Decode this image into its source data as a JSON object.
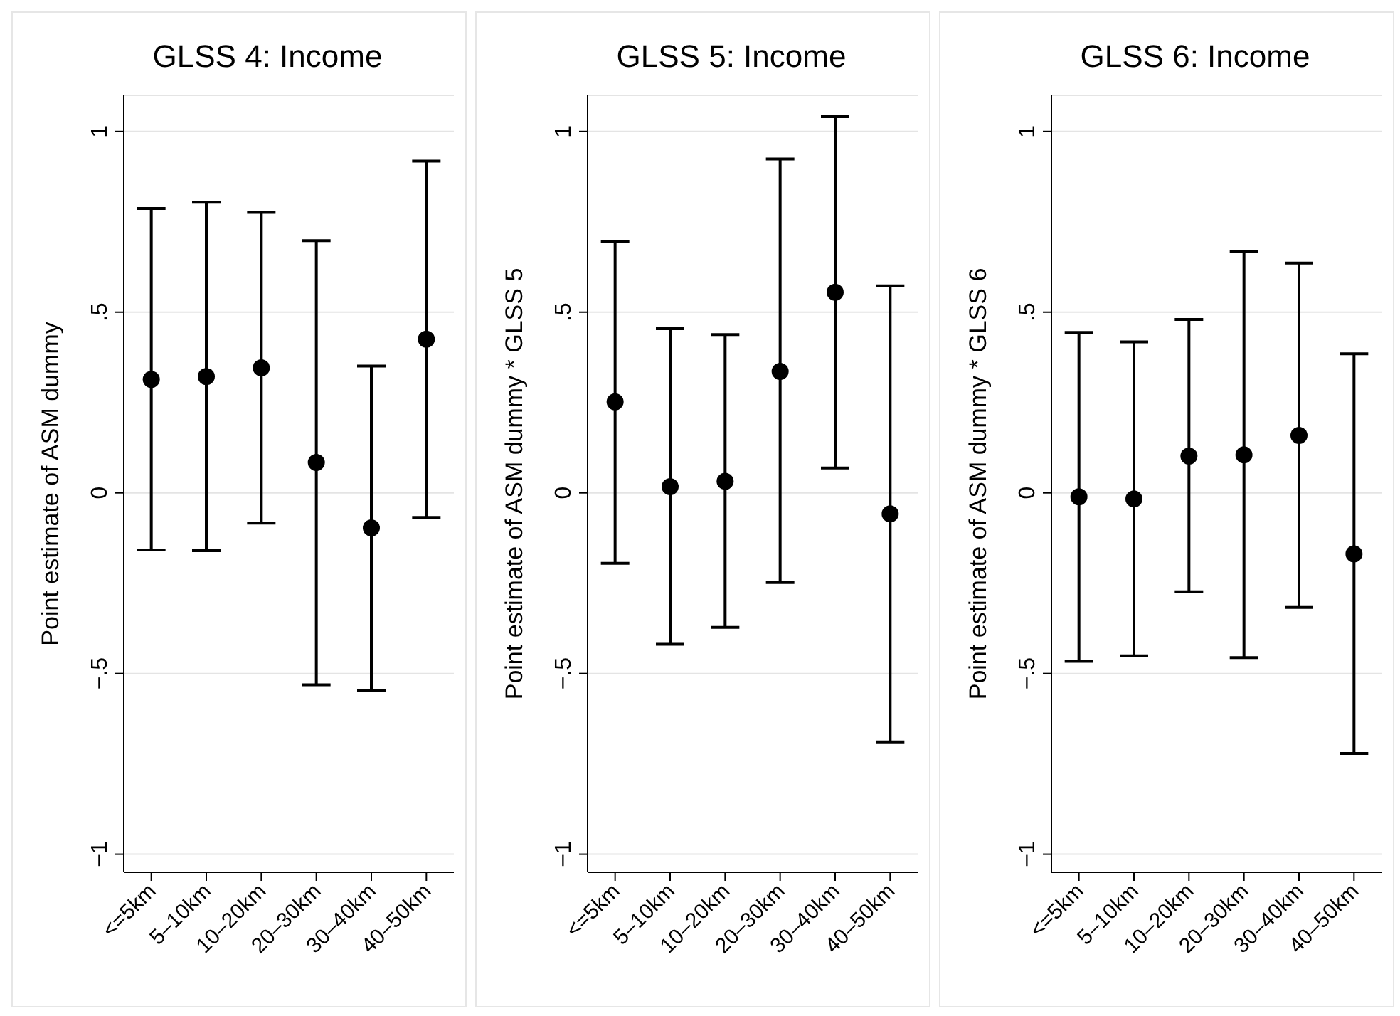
{
  "chart_data": [
    {
      "type": "scatter",
      "title": "GLSS 4: Income",
      "ylabel": "Point estimate of ASM dummy",
      "categories": [
        "<=5km",
        "5–10km",
        "10–20km",
        "20–30km",
        "30–40km",
        "40–50km"
      ],
      "grid": "y",
      "marker": "circle",
      "ylim": [
        -1.05,
        1.1
      ],
      "yticks": [
        {
          "value": -1,
          "label": "−1"
        },
        {
          "value": -0.5,
          "label": "−.5"
        },
        {
          "value": 0,
          "label": "0"
        },
        {
          "value": 0.5,
          "label": ".5"
        },
        {
          "value": 1,
          "label": "1"
        }
      ],
      "series": [
        {
          "color": "#000000",
          "values": [
            0.314,
            0.322,
            0.346,
            0.084,
            -0.097,
            0.425
          ],
          "errors": [
            [
              -0.158,
              0.787
            ],
            [
              -0.16,
              0.804
            ],
            [
              -0.084,
              0.776
            ],
            [
              -0.531,
              0.698
            ],
            [
              -0.546,
              0.351
            ],
            [
              -0.068,
              0.918
            ]
          ]
        }
      ]
    },
    {
      "type": "scatter",
      "title": "GLSS 5: Income",
      "ylabel": "Point estimate of ASM dummy * GLSS 5",
      "categories": [
        "<=5km",
        "5–10km",
        "10–20km",
        "20–30km",
        "30–40km",
        "40–50km"
      ],
      "grid": "y",
      "marker": "circle",
      "ylim": [
        -1.05,
        1.1
      ],
      "yticks": [
        {
          "value": -1,
          "label": "−1"
        },
        {
          "value": -0.5,
          "label": "−.5"
        },
        {
          "value": 0,
          "label": "0"
        },
        {
          "value": 0.5,
          "label": ".5"
        },
        {
          "value": 1,
          "label": "1"
        }
      ],
      "series": [
        {
          "color": "#000000",
          "values": [
            0.252,
            0.017,
            0.032,
            0.336,
            0.555,
            -0.058
          ],
          "errors": [
            [
              -0.195,
              0.696
            ],
            [
              -0.419,
              0.454
            ],
            [
              -0.372,
              0.438
            ],
            [
              -0.248,
              0.924
            ],
            [
              0.069,
              1.041
            ],
            [
              -0.689,
              0.573
            ]
          ]
        }
      ]
    },
    {
      "type": "scatter",
      "title": "GLSS 6: Income",
      "ylabel": "Point estimate of ASM dummy * GLSS 6",
      "categories": [
        "<=5km",
        "5–10km",
        "10–20km",
        "20–30km",
        "30–40km",
        "40–50km"
      ],
      "grid": "y",
      "marker": "circle",
      "ylim": [
        -1.05,
        1.1
      ],
      "yticks": [
        {
          "value": -1,
          "label": "−1"
        },
        {
          "value": -0.5,
          "label": "−.5"
        },
        {
          "value": 0,
          "label": "0"
        },
        {
          "value": 0.5,
          "label": ".5"
        },
        {
          "value": 1,
          "label": "1"
        }
      ],
      "series": [
        {
          "color": "#000000",
          "values": [
            -0.011,
            -0.017,
            0.102,
            0.105,
            0.159,
            -0.169
          ],
          "errors": [
            [
              -0.466,
              0.444
            ],
            [
              -0.451,
              0.418
            ],
            [
              -0.274,
              0.48
            ],
            [
              -0.456,
              0.669
            ],
            [
              -0.317,
              0.636
            ],
            [
              -0.721,
              0.385
            ]
          ]
        }
      ]
    }
  ]
}
